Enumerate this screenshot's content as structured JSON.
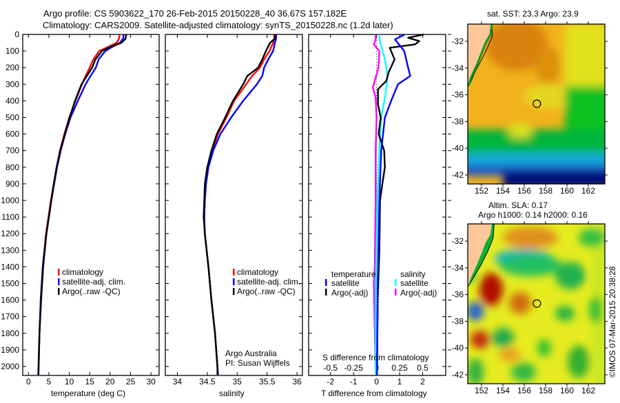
{
  "header": {
    "line1": "Argo profile: CS 5903622_170 26-Feb-2015 20150228_40 36.67S 157.182E",
    "line2": "Climatology: CARS2009. Satellite-adjusted climatology: synTS_20150228.nc (1.2d later)"
  },
  "copyright": "©IMOS 07-Mar-2015 20:38:28",
  "colors": {
    "climatology": "#ff0000",
    "satellite": "#0000ff",
    "argo": "#000000",
    "sal_satellite": "#00ffff",
    "sal_argo": "#ff00ff"
  },
  "chart_data": [
    {
      "type": "line",
      "name": "temperature",
      "xlabel": "temperature (deg C)",
      "ylabel": "pressure",
      "xlim": [
        -1.4,
        32
      ],
      "ylim": [
        2054,
        0
      ],
      "xticks": [
        "0",
        "5",
        "10",
        "15",
        "20",
        "25",
        "30"
      ],
      "yticks": [
        "0",
        "100",
        "200",
        "300",
        "400",
        "500",
        "600",
        "700",
        "800",
        "900",
        "1000",
        "1100",
        "1200",
        "1300",
        "1400",
        "1500",
        "1600",
        "1700",
        "1800",
        "1900",
        "2000"
      ],
      "depth": [
        0,
        25,
        50,
        75,
        100,
        150,
        200,
        250,
        300,
        400,
        500,
        600,
        700,
        800,
        900,
        1000,
        1200,
        1400,
        1600,
        1800,
        2000,
        2050
      ],
      "series": [
        {
          "name": "climatology",
          "color": "#ff0000",
          "values": [
            22.3,
            22.2,
            21.6,
            19.5,
            17.3,
            15.9,
            15.0,
            14.0,
            13.1,
            11.5,
            10.0,
            8.8,
            7.7,
            6.9,
            6.2,
            5.5,
            4.3,
            3.5,
            3.0,
            2.7,
            2.5,
            2.4
          ]
        },
        {
          "name": "satellite-adj. clim.",
          "color": "#0000ff",
          "values": [
            23.3,
            23.2,
            22.4,
            20.5,
            18.8,
            17.2,
            16.5,
            15.2,
            14.0,
            12.1,
            10.3,
            9.0,
            7.9,
            7.0,
            6.3,
            5.6,
            4.4,
            3.5,
            3.0,
            2.7,
            2.45,
            2.4
          ]
        },
        {
          "name": "Argo(..raw -QC)",
          "color": "#000000",
          "values": [
            23.9,
            23.8,
            22.8,
            20.0,
            18.0,
            16.4,
            15.6,
            14.3,
            13.0,
            11.4,
            10.1,
            8.9,
            7.8,
            6.9,
            6.2,
            5.6,
            4.4,
            3.6,
            3.1,
            2.7,
            2.5,
            2.45
          ]
        }
      ]
    },
    {
      "type": "line",
      "name": "salinity",
      "xlabel": "salinity",
      "xlim": [
        33.8,
        36.09
      ],
      "ylim": [
        2054,
        0
      ],
      "xticks": [
        "34",
        "34.5",
        "35",
        "35.5",
        "36"
      ],
      "depth": [
        0,
        25,
        50,
        100,
        150,
        200,
        250,
        300,
        400,
        500,
        600,
        700,
        800,
        900,
        1000,
        1100,
        1200,
        1400,
        1600,
        1800,
        2000,
        2050
      ],
      "series": [
        {
          "name": "climatology",
          "color": "#ff0000",
          "values": [
            35.62,
            35.62,
            35.6,
            35.54,
            35.45,
            35.38,
            35.25,
            35.15,
            34.95,
            34.82,
            34.68,
            34.58,
            34.51,
            34.47,
            34.46,
            34.45,
            34.46,
            34.52,
            34.57,
            34.63,
            34.67,
            34.68
          ]
        },
        {
          "name": "satellite-adj. clim.",
          "color": "#0000ff",
          "values": [
            35.65,
            35.65,
            35.63,
            35.6,
            35.52,
            35.45,
            35.42,
            35.33,
            35.1,
            34.9,
            34.72,
            34.6,
            34.52,
            34.48,
            34.46,
            34.45,
            34.46,
            34.52,
            34.57,
            34.63,
            34.67,
            34.68
          ]
        },
        {
          "name": "Argo(..raw -QC)",
          "color": "#000000",
          "values": [
            35.63,
            35.63,
            35.55,
            35.48,
            35.42,
            35.35,
            35.17,
            35.1,
            34.93,
            34.8,
            34.66,
            34.57,
            34.5,
            34.46,
            34.45,
            34.44,
            34.46,
            34.52,
            34.57,
            34.63,
            34.67,
            34.67
          ]
        }
      ],
      "annotation": [
        "Argo Australia",
        "PI: Susan Wijffels"
      ]
    },
    {
      "type": "line",
      "name": "difference",
      "xlabel": "T difference from climatology",
      "x2label": "S difference from climatology",
      "xlim": [
        -2.95,
        3.0
      ],
      "ylim": [
        2054,
        0
      ],
      "xticks": [
        "-2",
        "-1",
        "0",
        "1",
        "2"
      ],
      "x2ticks": [
        "-0.5",
        "-0.25",
        "0",
        "0.25",
        "0.5"
      ],
      "legend_headers": [
        "temperature",
        "salinity"
      ],
      "series": [
        {
          "name": "satellite",
          "group": "temperature",
          "color": "#0000ff",
          "depth": [
            0,
            30,
            100,
            200,
            250,
            300,
            400,
            500,
            700,
            1000,
            1500,
            2050
          ],
          "values": [
            1.22,
            0.8,
            1.2,
            1.37,
            1.46,
            0.93,
            0.63,
            0.36,
            0.2,
            0.12,
            0.05,
            0.02
          ]
        },
        {
          "name": "Argo(-adj)",
          "group": "temperature",
          "color": "#000000",
          "depth": [
            0,
            20,
            40,
            60,
            80,
            150,
            230,
            280,
            330,
            420,
            500,
            600,
            700,
            800,
            900,
            1000,
            1300,
            1600,
            2000
          ],
          "values": [
            2.06,
            1.37,
            1.85,
            1.67,
            0.57,
            0.78,
            0.52,
            0.42,
            0.06,
            0.06,
            0.18,
            0.09,
            0.33,
            0.36,
            0.25,
            0.15,
            0.12,
            0.05,
            0.02
          ]
        },
        {
          "name": "satellite",
          "group": "salinity",
          "color": "#00ffff",
          "depth": [
            0,
            50,
            150,
            250,
            350,
            500,
            700,
            1000,
            1500,
            2050
          ],
          "values": [
            0.03,
            0.04,
            0.09,
            0.12,
            0.1,
            0.05,
            0.03,
            0.01,
            -0.01,
            -0.01
          ]
        },
        {
          "name": "Argo(-adj)",
          "group": "salinity",
          "color": "#ff00ff",
          "depth": [
            0,
            30,
            60,
            100,
            200,
            280,
            320,
            380,
            500,
            700,
            1000,
            1400,
            1500,
            2050
          ],
          "values": [
            -0.01,
            -0.01,
            -0.03,
            0.03,
            0.02,
            -0.02,
            -0.04,
            -0.01,
            0.0,
            -0.01,
            -0.01,
            -0.02,
            -0.03,
            -0.01
          ]
        }
      ]
    }
  ],
  "maps": {
    "sst": {
      "title": "sat. SST: 23.3 Argo: 23.9"
    },
    "sla": {
      "title1": "Altim. SLA: 0.17",
      "title2": "Argo h1000: 0.14 h2000: 0.16"
    },
    "lon_ticks": [
      "152",
      "154",
      "156",
      "158",
      "160",
      "162"
    ],
    "lat_ticks": [
      "-32",
      "-34",
      "-36",
      "-38",
      "-40",
      "-42"
    ],
    "argo_position": {
      "lon": 157.182,
      "lat": -36.67
    }
  }
}
